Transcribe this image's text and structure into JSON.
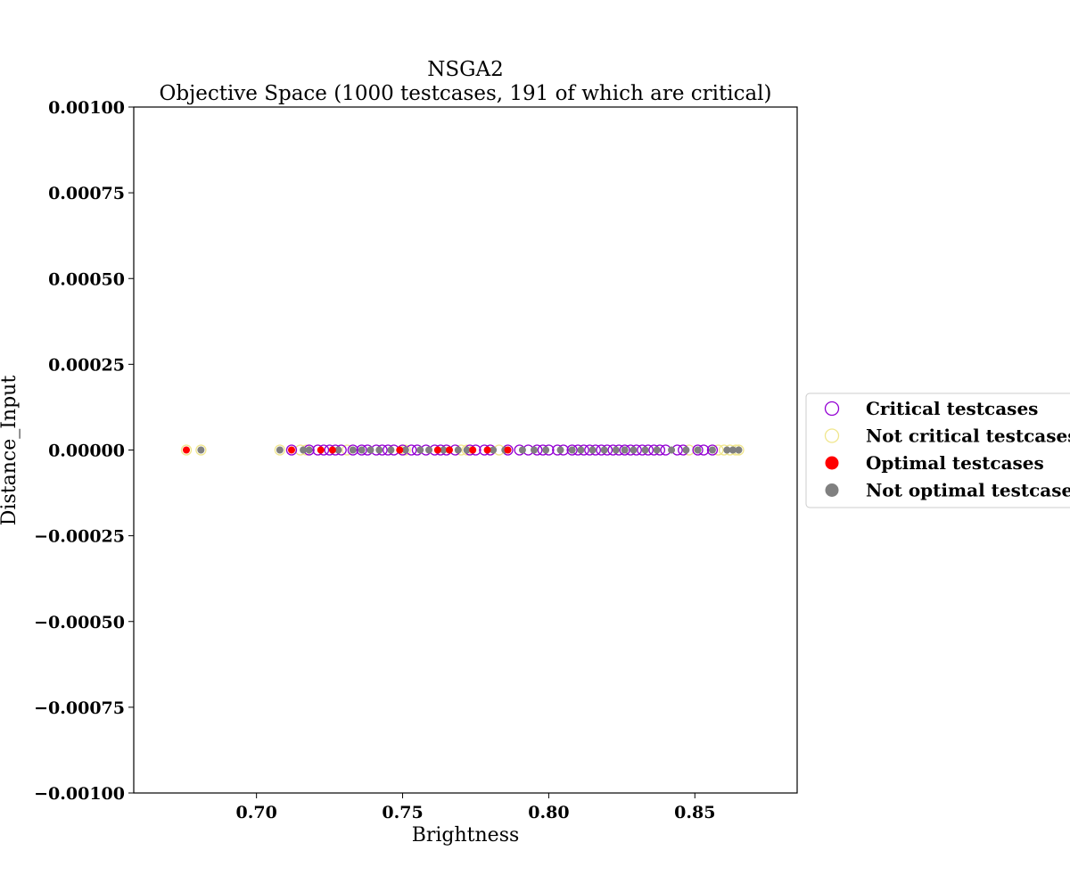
{
  "chart_data": {
    "type": "scatter",
    "title": "NSGA2",
    "subtitle": "Objective Space (1000 testcases, 191 of which are critical)",
    "xlabel": "Brightness",
    "ylabel": "Distance_Input",
    "xlim": [
      0.658,
      0.885
    ],
    "ylim": [
      -0.001,
      0.001
    ],
    "xticks": [
      0.7,
      0.75,
      0.8,
      0.85
    ],
    "xtick_labels": [
      "0.70",
      "0.75",
      "0.80",
      "0.85"
    ],
    "yticks": [
      0.001,
      0.00075,
      0.0005,
      0.00025,
      0.0,
      -0.00025,
      -0.0005,
      -0.00075,
      -0.001
    ],
    "ytick_labels": [
      "0.00100",
      "0.00075",
      "0.00050",
      "0.00025",
      "0.00000",
      "−0.00025",
      "−0.00050",
      "−0.00075",
      "−0.00100"
    ],
    "grid": false,
    "legend_position": "right",
    "colors": {
      "critical": "#9400d3",
      "not_critical": "#f0e68c",
      "optimal": "#ff0000",
      "not_optimal": "#808080"
    },
    "series": [
      {
        "name": "Critical testcases",
        "style": "hollow-circle",
        "color": "#9400d3",
        "x": [
          0.712,
          0.718,
          0.721,
          0.723,
          0.725,
          0.727,
          0.729,
          0.733,
          0.736,
          0.738,
          0.741,
          0.743,
          0.745,
          0.747,
          0.75,
          0.753,
          0.755,
          0.758,
          0.761,
          0.763,
          0.765,
          0.768,
          0.773,
          0.775,
          0.778,
          0.78,
          0.786,
          0.79,
          0.793,
          0.796,
          0.798,
          0.8,
          0.803,
          0.805,
          0.808,
          0.81,
          0.812,
          0.814,
          0.816,
          0.818,
          0.82,
          0.822,
          0.824,
          0.826,
          0.828,
          0.83,
          0.832,
          0.834,
          0.836,
          0.838,
          0.84,
          0.844,
          0.846,
          0.851,
          0.853,
          0.856
        ],
        "y": [
          0,
          0,
          0,
          0,
          0,
          0,
          0,
          0,
          0,
          0,
          0,
          0,
          0,
          0,
          0,
          0,
          0,
          0,
          0,
          0,
          0,
          0,
          0,
          0,
          0,
          0,
          0,
          0,
          0,
          0,
          0,
          0,
          0,
          0,
          0,
          0,
          0,
          0,
          0,
          0,
          0,
          0,
          0,
          0,
          0,
          0,
          0,
          0,
          0,
          0,
          0,
          0,
          0,
          0,
          0,
          0
        ]
      },
      {
        "name": "Not critical testcases",
        "style": "hollow-circle",
        "color": "#f0e68c",
        "x": [
          0.676,
          0.681,
          0.708,
          0.715,
          0.717,
          0.731,
          0.751,
          0.77,
          0.772,
          0.783,
          0.848,
          0.858,
          0.86,
          0.862,
          0.864,
          0.865
        ],
        "y": [
          0,
          0,
          0,
          0,
          0,
          0,
          0,
          0,
          0,
          0,
          0,
          0,
          0,
          0,
          0,
          0
        ]
      },
      {
        "name": "Optimal testcases",
        "style": "filled-circle",
        "color": "#ff0000",
        "x": [
          0.676,
          0.712,
          0.722,
          0.726,
          0.749,
          0.762,
          0.766,
          0.774,
          0.779,
          0.786
        ],
        "y": [
          0,
          0,
          0,
          0,
          0,
          0,
          0,
          0,
          0,
          0
        ]
      },
      {
        "name": "Not optimal testcases",
        "style": "filled-circle",
        "color": "#808080",
        "x": [
          0.681,
          0.708,
          0.716,
          0.718,
          0.728,
          0.733,
          0.736,
          0.739,
          0.742,
          0.746,
          0.751,
          0.756,
          0.759,
          0.764,
          0.769,
          0.772,
          0.781,
          0.785,
          0.791,
          0.795,
          0.799,
          0.804,
          0.808,
          0.811,
          0.815,
          0.819,
          0.823,
          0.826,
          0.829,
          0.833,
          0.837,
          0.842,
          0.847,
          0.851,
          0.856,
          0.861,
          0.863,
          0.865
        ],
        "y": [
          0,
          0,
          0,
          0,
          0,
          0,
          0,
          0,
          0,
          0,
          0,
          0,
          0,
          0,
          0,
          0,
          0,
          0,
          0,
          0,
          0,
          0,
          0,
          0,
          0,
          0,
          0,
          0,
          0,
          0,
          0,
          0,
          0,
          0,
          0,
          0,
          0,
          0
        ]
      }
    ],
    "legend": [
      {
        "label": "Critical testcases",
        "style": "hollow-circle",
        "color": "#9400d3"
      },
      {
        "label": "Not critical testcases",
        "style": "hollow-circle",
        "color": "#f0e68c"
      },
      {
        "label": "Optimal testcases",
        "style": "filled-circle",
        "color": "#ff0000"
      },
      {
        "label": "Not optimal testcases",
        "style": "filled-circle",
        "color": "#808080"
      }
    ]
  }
}
